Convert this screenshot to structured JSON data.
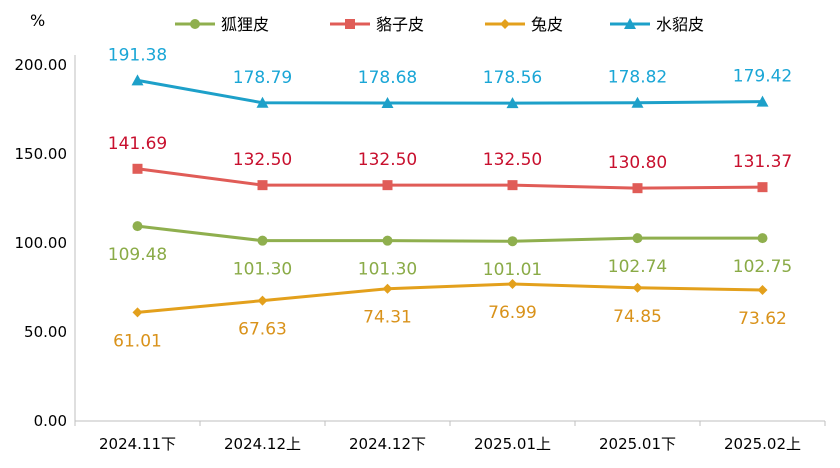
{
  "chart_data": {
    "type": "line",
    "ylabel": "%",
    "ylim": [
      0,
      200
    ],
    "yticks": [
      "0.00",
      "50.00",
      "100.00",
      "150.00",
      "200.00"
    ],
    "categories": [
      "2024.11下",
      "2024.12上",
      "2024.12下",
      "2025.01上",
      "2025.01下",
      "2025.02上"
    ],
    "legend_position": "top",
    "grid": false,
    "series": [
      {
        "name": "狐狸皮",
        "color": "#8faf4e",
        "marker": "circle",
        "values": [
          109.48,
          101.3,
          101.3,
          101.01,
          102.74,
          102.75
        ],
        "labels": [
          "109.48",
          "101.30",
          "101.30",
          "101.01",
          "102.74",
          "102.75"
        ],
        "label_pos": "below"
      },
      {
        "name": "貉子皮",
        "color": "#e05c57",
        "marker": "square",
        "values": [
          141.69,
          132.5,
          132.5,
          132.5,
          130.8,
          131.37
        ],
        "labels": [
          "141.69",
          "132.50",
          "132.50",
          "132.50",
          "130.80",
          "131.37"
        ],
        "label_pos": "above"
      },
      {
        "name": "兔皮",
        "color": "#e3a01c",
        "marker": "diamond",
        "values": [
          61.01,
          67.63,
          74.31,
          76.99,
          74.85,
          73.62
        ],
        "labels": [
          "61.01",
          "67.63",
          "74.31",
          "76.99",
          "74.85",
          "73.62"
        ],
        "label_pos": "below"
      },
      {
        "name": "水貂皮",
        "color": "#1da0c9",
        "marker": "triangle",
        "values": [
          191.38,
          178.79,
          178.68,
          178.56,
          178.82,
          179.42
        ],
        "labels": [
          "191.38",
          "178.79",
          "178.68",
          "178.56",
          "178.82",
          "179.42"
        ],
        "label_pos": "above"
      }
    ],
    "label_colors": {
      "狐狸皮": "#8aab47",
      "貉子皮": "#c8102e",
      "兔皮": "#d9921a",
      "水貂皮": "#1aa6d6"
    }
  }
}
